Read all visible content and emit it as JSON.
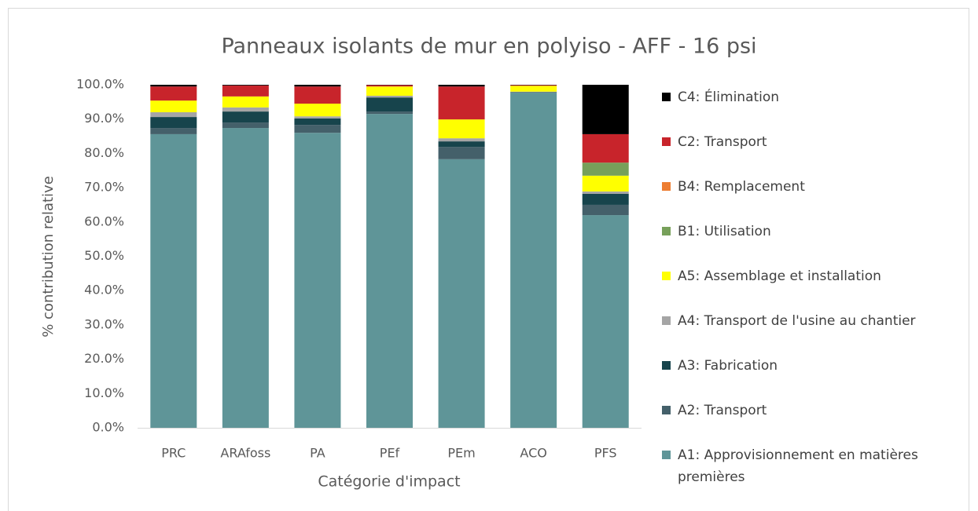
{
  "chart_data": {
    "type": "stacked_bar",
    "title": "Panneaux isolants de mur en polyiso - AFF - 16 psi",
    "x_label": "Catégorie d'impact",
    "y_label": "% contribution relative",
    "categories": [
      "PRC",
      "ARAfoss",
      "PA",
      "PEf",
      "PEm",
      "ACO",
      "PFS"
    ],
    "series": [
      {
        "name": "A1: Approvisionnement en matières premières",
        "color": "#5f9598",
        "values": [
          85.6,
          87.4,
          86.0,
          91.5,
          78.3,
          97.7,
          62.0
        ]
      },
      {
        "name": "A2: Transport",
        "color": "#44606a",
        "values": [
          1.8,
          1.6,
          2.3,
          0.7,
          3.6,
          0.1,
          3.0
        ]
      },
      {
        "name": "A3: Fabrication",
        "color": "#17444c",
        "values": [
          3.2,
          3.2,
          1.9,
          4.1,
          1.6,
          0.1,
          3.2
        ]
      },
      {
        "name": "A4: Transport de l'usine au chantier",
        "color": "#a5a5a5",
        "values": [
          1.4,
          1.2,
          0.6,
          0.5,
          0.9,
          0.1,
          0.7
        ]
      },
      {
        "name": "A5: Assemblage et installation",
        "color": "#ffff00",
        "values": [
          3.4,
          3.2,
          3.7,
          2.7,
          5.5,
          1.7,
          4.6
        ]
      },
      {
        "name": "B1: Utilisation",
        "color": "#77a05a",
        "values": [
          0,
          0,
          0,
          0,
          0,
          0,
          3.8
        ]
      },
      {
        "name": "B4: Remplacement",
        "color": "#ed7d31",
        "values": [
          0,
          0,
          0,
          0,
          0,
          0,
          0
        ]
      },
      {
        "name": "C2: Transport",
        "color": "#c8242b",
        "values": [
          4.1,
          3.2,
          5.0,
          0.4,
          9.6,
          0.2,
          8.3
        ]
      },
      {
        "name": "C4: Élimination",
        "color": "#000000",
        "values": [
          0.5,
          0.2,
          0.5,
          0.1,
          0.5,
          0.1,
          14.4
        ]
      }
    ],
    "ylim": [
      0,
      100
    ],
    "yticks": [
      {
        "value": 0,
        "label": "0.0%"
      },
      {
        "value": 10,
        "label": "10.0%"
      },
      {
        "value": 20,
        "label": "20.0%"
      },
      {
        "value": 30,
        "label": "30.0%"
      },
      {
        "value": 40,
        "label": "40.0%"
      },
      {
        "value": 50,
        "label": "50.0%"
      },
      {
        "value": 60,
        "label": "60.0%"
      },
      {
        "value": 70,
        "label": "70.0%"
      },
      {
        "value": 80,
        "label": "80.0%"
      },
      {
        "value": 90,
        "label": "90.0%"
      },
      {
        "value": 100,
        "label": "100.0%"
      }
    ],
    "grid": false,
    "legend": "right"
  }
}
